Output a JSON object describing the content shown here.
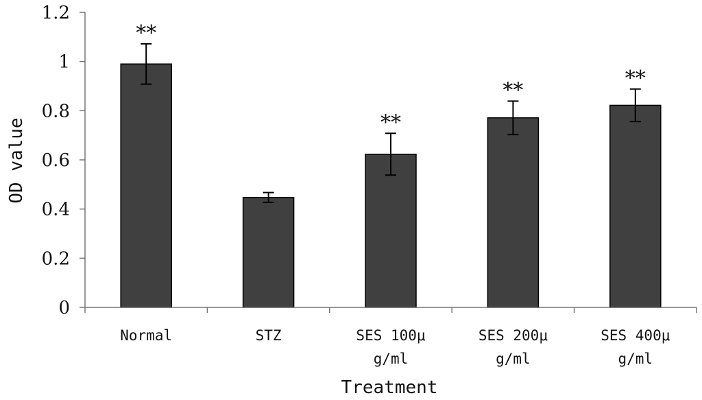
{
  "chart_data": {
    "type": "bar",
    "title": "",
    "xlabel": "Treatment",
    "ylabel": "OD value",
    "ylim": [
      0,
      1.2
    ],
    "yticks": [
      "0",
      "0.2",
      "0.4",
      "0.6",
      "0.8",
      "1",
      "1.2"
    ],
    "categories": [
      [
        "Normal"
      ],
      [
        "STZ"
      ],
      [
        "SES 100μ",
        "g/ml"
      ],
      [
        "SES 200μ",
        "g/ml"
      ],
      [
        "SES 400μ",
        "g/ml"
      ]
    ],
    "values": [
      0.99,
      0.447,
      0.623,
      0.771,
      0.822
    ],
    "errors": [
      0.082,
      0.02,
      0.085,
      0.068,
      0.066
    ],
    "annotations": [
      "**",
      "",
      "**",
      "**",
      "**"
    ],
    "bar_color": "#404040",
    "grid": false
  }
}
